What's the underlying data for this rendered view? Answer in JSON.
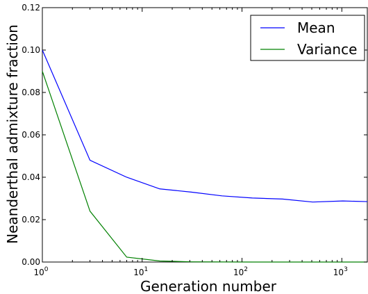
{
  "chart_data": {
    "type": "line",
    "title": "",
    "xlabel": "Generation number",
    "ylabel": "Neanderthal admixture fraction",
    "xscale": "log",
    "xlim": [
      1,
      1800
    ],
    "ylim": [
      0,
      0.12
    ],
    "grid": false,
    "legend_position": "top-right",
    "y_ticks": [
      {
        "value": 0.0,
        "label": "0.00"
      },
      {
        "value": 0.02,
        "label": "0.02"
      },
      {
        "value": 0.04,
        "label": "0.04"
      },
      {
        "value": 0.06,
        "label": "0.06"
      },
      {
        "value": 0.08,
        "label": "0.08"
      },
      {
        "value": 0.1,
        "label": "0.10"
      },
      {
        "value": 0.12,
        "label": "0.12"
      }
    ],
    "x_ticks": [
      {
        "value": 1,
        "base": "10",
        "exp": "0"
      },
      {
        "value": 10,
        "base": "10",
        "exp": "1"
      },
      {
        "value": 100,
        "base": "10",
        "exp": "2"
      },
      {
        "value": 1000,
        "base": "10",
        "exp": "3"
      }
    ],
    "series": [
      {
        "name": "Mean",
        "color": "#0000ff",
        "x": [
          1,
          3,
          7,
          15,
          31,
          63,
          127,
          255,
          511,
          1023,
          1800
        ],
        "y": [
          0.1,
          0.048,
          0.04,
          0.0345,
          0.033,
          0.0312,
          0.0302,
          0.0297,
          0.0283,
          0.0288,
          0.0285
        ]
      },
      {
        "name": "Variance",
        "color": "#008000",
        "x": [
          1,
          3,
          7,
          15,
          31,
          63,
          127,
          255,
          511,
          1023,
          1800
        ],
        "y": [
          0.09,
          0.024,
          0.0023,
          0.0005,
          0.0001,
          3e-05,
          1e-05,
          0.0,
          0.0,
          0.0,
          0.0
        ]
      }
    ]
  }
}
